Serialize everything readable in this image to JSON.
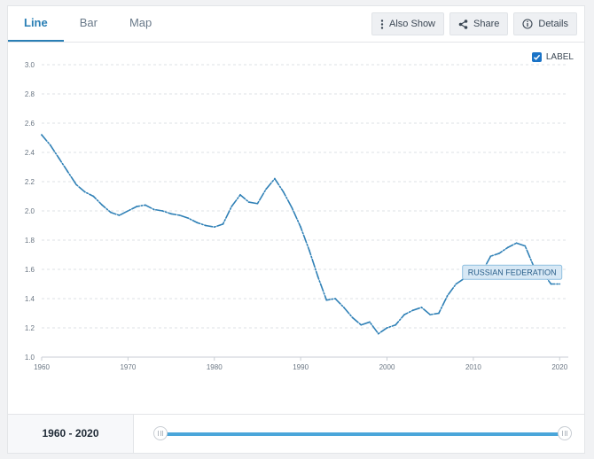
{
  "tabs": [
    {
      "label": "Line",
      "active": true
    },
    {
      "label": "Bar",
      "active": false
    },
    {
      "label": "Map",
      "active": false
    }
  ],
  "toolbar": {
    "also_show": "Also Show",
    "share": "Share",
    "details": "Details"
  },
  "label_toggle": {
    "text": "LABEL",
    "checked": true
  },
  "range": {
    "text": "1960 - 2020",
    "start_year": 1960,
    "end_year": 2020
  },
  "colors": {
    "accent": "#2a7fb5",
    "line": "#2f80b6",
    "slider": "#4aa6da"
  },
  "chart_data": {
    "type": "line",
    "title": "",
    "xlabel": "",
    "ylabel": "",
    "xlim": [
      1960,
      2021
    ],
    "ylim": [
      1.0,
      3.0
    ],
    "x_ticks": [
      1960,
      1970,
      1980,
      1990,
      2000,
      2010,
      2020
    ],
    "y_ticks": [
      1.0,
      1.2,
      1.4,
      1.6,
      1.8,
      2.0,
      2.2,
      2.4,
      2.6,
      2.8,
      3.0
    ],
    "y_tick_labels": [
      "1.0",
      "1.2",
      "1.4",
      "1.6",
      "1.8",
      "2.0",
      "2.2",
      "2.4",
      "2.6",
      "2.8",
      "3.0"
    ],
    "grid": true,
    "series": [
      {
        "name": "RUSSIAN FEDERATION",
        "x": [
          1960,
          1961,
          1962,
          1963,
          1964,
          1965,
          1966,
          1967,
          1968,
          1969,
          1970,
          1971,
          1972,
          1973,
          1974,
          1975,
          1976,
          1977,
          1978,
          1979,
          1980,
          1981,
          1982,
          1983,
          1984,
          1985,
          1986,
          1987,
          1988,
          1989,
          1990,
          1991,
          1992,
          1993,
          1994,
          1995,
          1996,
          1997,
          1998,
          1999,
          2000,
          2001,
          2002,
          2003,
          2004,
          2005,
          2006,
          2007,
          2008,
          2009,
          2010,
          2011,
          2012,
          2013,
          2014,
          2015,
          2016,
          2017,
          2018,
          2019,
          2020
        ],
        "values": [
          2.52,
          2.45,
          2.36,
          2.27,
          2.18,
          2.13,
          2.1,
          2.04,
          1.99,
          1.97,
          2.0,
          2.03,
          2.04,
          2.01,
          2.0,
          1.98,
          1.97,
          1.95,
          1.92,
          1.9,
          1.89,
          1.91,
          2.03,
          2.11,
          2.06,
          2.05,
          2.15,
          2.22,
          2.13,
          2.02,
          1.89,
          1.73,
          1.55,
          1.39,
          1.4,
          1.34,
          1.27,
          1.22,
          1.24,
          1.16,
          1.2,
          1.22,
          1.29,
          1.32,
          1.34,
          1.29,
          1.3,
          1.42,
          1.5,
          1.54,
          1.57,
          1.58,
          1.69,
          1.71,
          1.75,
          1.78,
          1.76,
          1.62,
          1.58,
          1.5,
          1.5
        ]
      }
    ],
    "annotations": [
      {
        "text": "RUSSIAN FEDERATION",
        "x": 2014.5,
        "y": 1.58
      }
    ]
  }
}
